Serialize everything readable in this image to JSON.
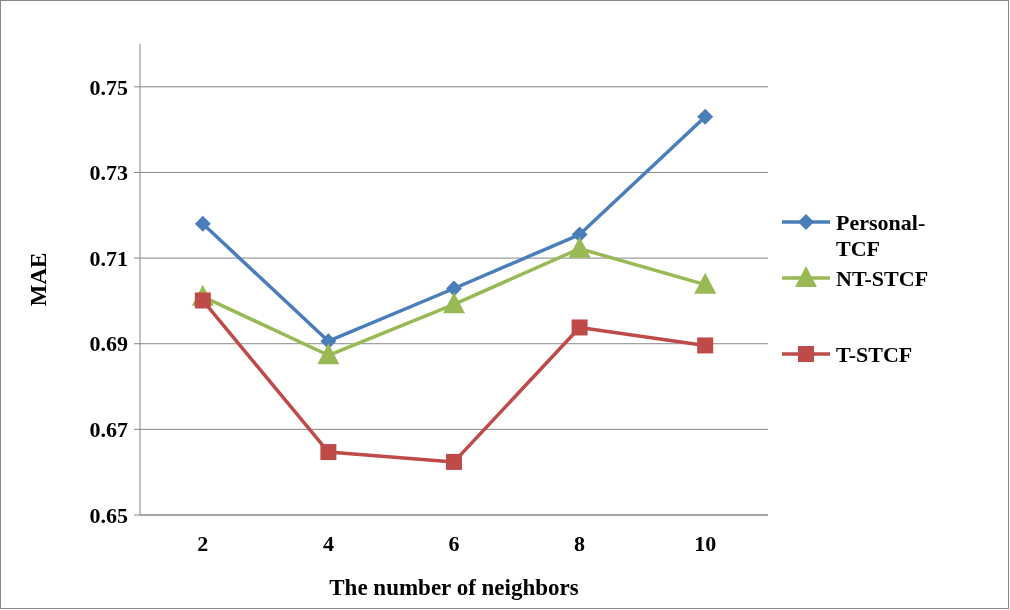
{
  "chart_data": {
    "type": "line",
    "xlabel": "The number of neighbors",
    "ylabel": "MAE",
    "categories": [
      "2",
      "4",
      "6",
      "8",
      "10"
    ],
    "series": [
      {
        "name": "Personal-TCF",
        "color": "#4a7ebb",
        "marker": "diamond",
        "values": [
          0.718,
          0.6906,
          0.7029,
          0.7155,
          0.743
        ]
      },
      {
        "name": "NT-STCF",
        "color": "#98b954",
        "marker": "triangle",
        "values": [
          0.701,
          0.6873,
          0.6992,
          0.7122,
          0.7038
        ]
      },
      {
        "name": "T-STCF",
        "color": "#be4b48",
        "marker": "square",
        "values": [
          0.7001,
          0.6647,
          0.6624,
          0.6938,
          0.6896
        ]
      }
    ],
    "ylim": [
      0.65,
      0.76
    ],
    "yticks": [
      0.65,
      0.67,
      0.69,
      0.71,
      0.73,
      0.75
    ],
    "grid": "y",
    "legend": "right"
  }
}
